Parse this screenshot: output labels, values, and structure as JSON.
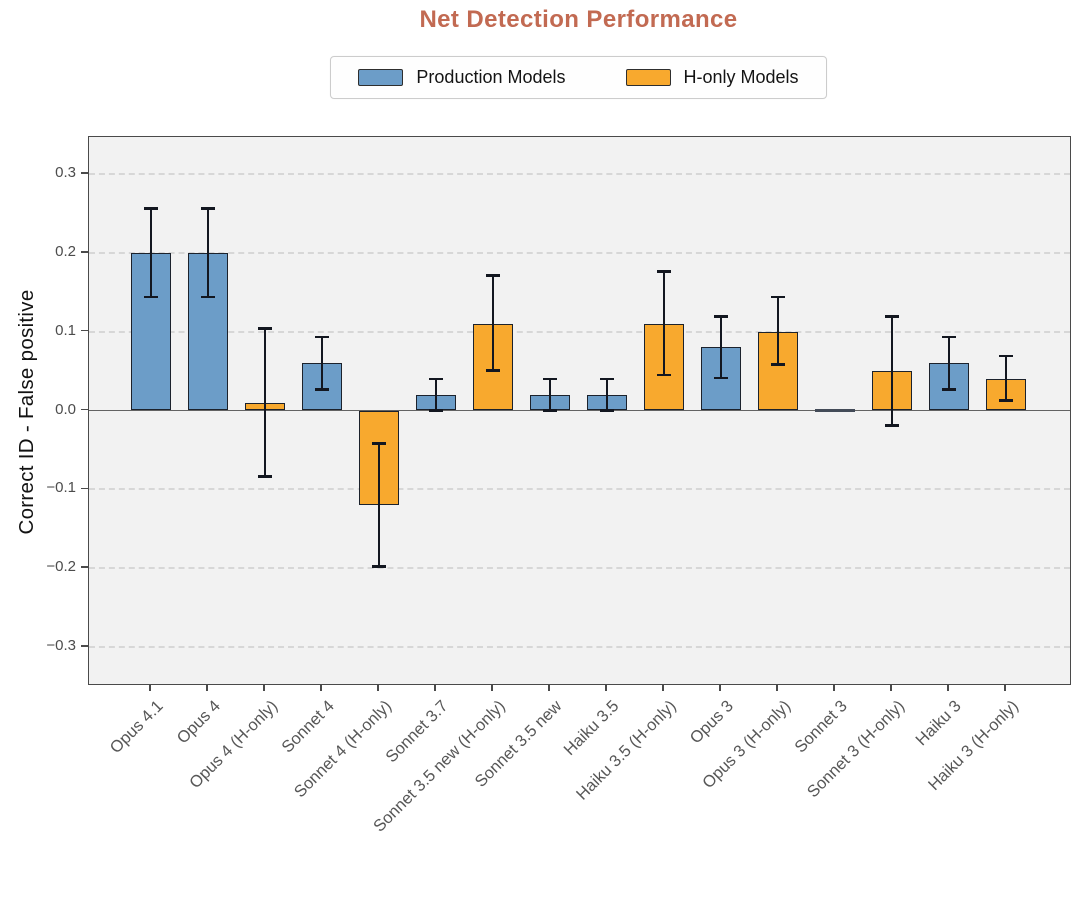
{
  "figure": {
    "title": "Net Detection Performance"
  },
  "chart_data": {
    "type": "bar",
    "title": "Net Detection Performance",
    "ylabel": "Correct ID - False positive",
    "xlabel": "",
    "ylim": [
      -0.347,
      0.347
    ],
    "ytick_values": [
      0.3,
      0.2,
      0.1,
      0.0,
      -0.1,
      -0.2,
      -0.3
    ],
    "ytick_labels": [
      "0.3",
      "0.2",
      "0.1",
      "0.0",
      "−0.1",
      "−0.2",
      "−0.3"
    ],
    "grid": "horizontal dashed gridlines every 0.1, solid line at 0",
    "legend_position": "top center outside plot",
    "legend": [
      {
        "name": "Production Models",
        "series": "production",
        "color": "#6c9dc8"
      },
      {
        "name": "H-only Models",
        "series": "h_only",
        "color": "#f8a92e"
      }
    ],
    "bars": [
      {
        "label": "Opus 4.1",
        "series": "production",
        "value": 0.2,
        "err_low": 0.144,
        "err_high": 0.256
      },
      {
        "label": "Opus 4",
        "series": "production",
        "value": 0.2,
        "err_low": 0.144,
        "err_high": 0.256
      },
      {
        "label": "Opus 4 (H-only)",
        "series": "h_only",
        "value": 0.01,
        "err_low": -0.084,
        "err_high": 0.104
      },
      {
        "label": "Sonnet 4",
        "series": "production",
        "value": 0.06,
        "err_low": 0.027,
        "err_high": 0.093
      },
      {
        "label": "Sonnet 4 (H-only)",
        "series": "h_only",
        "value": -0.12,
        "err_low": -0.198,
        "err_high": -0.042
      },
      {
        "label": "Sonnet 3.7",
        "series": "production",
        "value": 0.02,
        "err_low": 0.0,
        "err_high": 0.04
      },
      {
        "label": "Sonnet 3.5 new (H-only)",
        "series": "h_only",
        "value": 0.11,
        "err_low": 0.051,
        "err_high": 0.171
      },
      {
        "label": "Sonnet 3.5 new",
        "series": "production",
        "value": 0.02,
        "err_low": 0.0,
        "err_high": 0.04
      },
      {
        "label": "Haiku 3.5",
        "series": "production",
        "value": 0.02,
        "err_low": 0.0,
        "err_high": 0.04
      },
      {
        "label": "Haiku 3.5 (H-only)",
        "series": "h_only",
        "value": 0.11,
        "err_low": 0.045,
        "err_high": 0.176
      },
      {
        "label": "Opus 3",
        "series": "production",
        "value": 0.08,
        "err_low": 0.041,
        "err_high": 0.119
      },
      {
        "label": "Opus 3 (H-only)",
        "series": "h_only",
        "value": 0.1,
        "err_low": 0.058,
        "err_high": 0.144
      },
      {
        "label": "Sonnet 3",
        "series": "production",
        "value": 0.0,
        "err_low": 0.0,
        "err_high": 0.0
      },
      {
        "label": "Sonnet 3 (H-only)",
        "series": "h_only",
        "value": 0.05,
        "err_low": -0.019,
        "err_high": 0.119
      },
      {
        "label": "Haiku 3",
        "series": "production",
        "value": 0.06,
        "err_low": 0.027,
        "err_high": 0.093
      },
      {
        "label": "Haiku 3 (H-only)",
        "series": "h_only",
        "value": 0.04,
        "err_low": 0.013,
        "err_high": 0.069
      }
    ]
  },
  "colors": {
    "title": "#c26a52",
    "production_fill": "#6c9dc8",
    "h_only_fill": "#f8a92e",
    "bar_edge": "#1c222c",
    "error_bar": "#131720",
    "plot_background": "#f2f2f2",
    "grid_line": "#d7d7d7",
    "zero_line": "#636363",
    "axis_frame": "#4a4a4a",
    "tick_label": "#4c4c4c",
    "x_label": "#575757"
  }
}
